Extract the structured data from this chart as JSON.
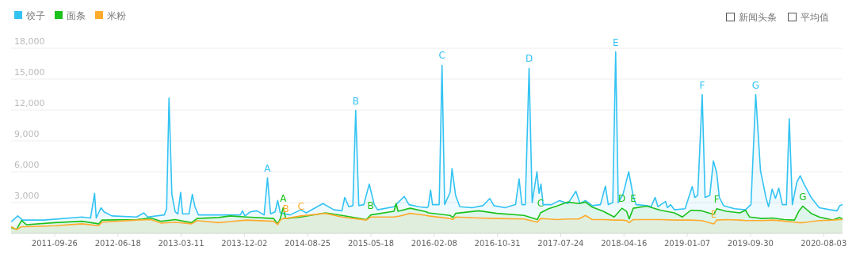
{
  "chart_data": {
    "type": "area",
    "legend": "top left",
    "grid": "y",
    "xlim": [
      "2011-03-27",
      "2020-10-21"
    ],
    "ylim": [
      0,
      18000
    ],
    "xticks": [
      {
        "value": "2011-09-26",
        "label": "2011-09-26"
      },
      {
        "value": "2012-06-18",
        "label": "2012-06-18"
      },
      {
        "value": "2013-03-11",
        "label": "2013-03-11"
      },
      {
        "value": "2013-12-02",
        "label": "2013-12-02"
      },
      {
        "value": "2014-08-25",
        "label": "2014-08-25"
      },
      {
        "value": "2015-05-18",
        "label": "2015-05-18"
      },
      {
        "value": "2016-02-08",
        "label": "2016-02-08"
      },
      {
        "value": "2016-10-31",
        "label": "2016-10-31"
      },
      {
        "value": "2017-07-24",
        "label": "2017-07-24"
      },
      {
        "value": "2018-04-16",
        "label": "2018-04-16"
      },
      {
        "value": "2019-01-07",
        "label": "2019-01-07"
      },
      {
        "value": "2019-09-30",
        "label": "2019-09-30"
      },
      {
        "value": "2020-08-03",
        "label": "2020-08-03"
      }
    ],
    "yticks": [
      {
        "value": 3000,
        "label": "3,000"
      },
      {
        "value": 6000,
        "label": "6,000"
      },
      {
        "value": 9000,
        "label": "9,000"
      },
      {
        "value": 12000,
        "label": "12,000"
      },
      {
        "value": 15000,
        "label": "15,000"
      },
      {
        "value": 18000,
        "label": "18,000"
      }
    ],
    "series": [
      {
        "name": "饺子",
        "color": "#33c3f3",
        "x": [
          "2011-03-28",
          "2011-04-24",
          "2011-05-14",
          "2011-08-12",
          "2012-01-19",
          "2012-02-24",
          "2012-03-12",
          "2012-03-19",
          "2012-04-08",
          "2012-04-21",
          "2012-05-24",
          "2012-09-05",
          "2012-10-05",
          "2012-10-21",
          "2012-12-30",
          "2013-01-09",
          "2013-01-19",
          "2013-01-31",
          "2013-02-14",
          "2013-02-25",
          "2013-03-09",
          "2013-03-17",
          "2013-04-13",
          "2013-04-27",
          "2013-05-08",
          "2013-05-23",
          "2013-11-15",
          "2013-11-24",
          "2013-12-04",
          "2013-12-27",
          "2014-01-24",
          "2014-02-23",
          "2014-03-09",
          "2014-03-22",
          "2014-04-10",
          "2014-04-21",
          "2014-05-02",
          "2014-06-12",
          "2014-07-27",
          "2014-08-19",
          "2014-10-28",
          "2014-12-13",
          "2015-01-16",
          "2015-01-28",
          "2015-02-14",
          "2015-03-03",
          "2015-03-15",
          "2015-03-28",
          "2015-04-18",
          "2015-05-11",
          "2015-06-01",
          "2015-06-15",
          "2015-08-23",
          "2015-10-05",
          "2015-10-25",
          "2015-12-04",
          "2016-01-08",
          "2016-01-14",
          "2016-01-24",
          "2016-02-01",
          "2016-02-29",
          "2016-03-12",
          "2016-03-23",
          "2016-04-15",
          "2016-04-23",
          "2016-05-08",
          "2016-05-26",
          "2016-07-16",
          "2016-08-31",
          "2016-09-29",
          "2016-10-16",
          "2016-12-01",
          "2017-01-15",
          "2017-01-30",
          "2017-02-11",
          "2017-02-25",
          "2017-03-13",
          "2017-03-26",
          "2017-04-15",
          "2017-04-24",
          "2017-05-02",
          "2017-05-11",
          "2017-06-15",
          "2017-07-19",
          "2017-08-23",
          "2017-09-26",
          "2017-10-13",
          "2017-11-05",
          "2017-12-04",
          "2018-01-07",
          "2018-01-28",
          "2018-02-09",
          "2018-02-28",
          "2018-03-12",
          "2018-03-23",
          "2018-04-12",
          "2018-05-06",
          "2018-05-25",
          "2018-06-06",
          "2018-07-22",
          "2018-08-08",
          "2018-08-25",
          "2018-09-06",
          "2018-10-08",
          "2018-10-16",
          "2018-10-29",
          "2018-11-14",
          "2018-12-29",
          "2019-01-28",
          "2019-02-08",
          "2019-02-20",
          "2019-03-11",
          "2019-03-23",
          "2019-04-12",
          "2019-04-27",
          "2019-05-11",
          "2019-05-22",
          "2019-06-09",
          "2019-07-25",
          "2019-09-09",
          "2019-10-02",
          "2019-10-22",
          "2019-11-11",
          "2019-12-04",
          "2019-12-15",
          "2019-12-30",
          "2020-01-13",
          "2020-01-27",
          "2020-02-11",
          "2020-02-28",
          "2020-03-11",
          "2020-03-24",
          "2020-04-12",
          "2020-04-26",
          "2020-05-12",
          "2020-06-11",
          "2020-07-15",
          "2020-08-30",
          "2020-09-28",
          "2020-10-09",
          "2020-10-21"
        ],
        "values": [
          1150,
          1700,
          1300,
          1300,
          1600,
          1500,
          3900,
          1500,
          2500,
          2100,
          1700,
          1600,
          2000,
          1600,
          1800,
          2400,
          13150,
          3800,
          2100,
          1900,
          4000,
          1900,
          1900,
          3800,
          2600,
          1800,
          1800,
          2200,
          1700,
          2100,
          2200,
          1800,
          5400,
          1900,
          2100,
          3200,
          2000,
          1800,
          2300,
          2000,
          2900,
          2300,
          2200,
          3500,
          2600,
          2700,
          11950,
          2700,
          2800,
          4800,
          2800,
          2300,
          2600,
          3600,
          2800,
          2600,
          2500,
          2600,
          4200,
          2800,
          2800,
          16350,
          2800,
          4000,
          6300,
          3700,
          2600,
          2500,
          2700,
          3400,
          2700,
          2500,
          2800,
          5300,
          2800,
          2800,
          16050,
          3000,
          6000,
          3900,
          4800,
          2800,
          2800,
          3200,
          2900,
          4100,
          2900,
          3200,
          2700,
          2800,
          4600,
          2800,
          3000,
          17650,
          3000,
          3800,
          6000,
          3600,
          2800,
          2700,
          2600,
          3500,
          2600,
          3100,
          2500,
          2800,
          2300,
          2400,
          4550,
          3500,
          3700,
          13500,
          3500,
          3700,
          7050,
          5900,
          3500,
          2700,
          2400,
          2300,
          2800,
          13500,
          6100,
          3500,
          2600,
          4300,
          3400,
          4400,
          2800,
          2800,
          11150,
          2800,
          5000,
          5600,
          4800,
          3500,
          2500,
          2300,
          2200,
          2700,
          2800
        ]
      },
      {
        "name": "面条",
        "color": "#1cc21c",
        "x": [
          "2011-03-27",
          "2011-04-19",
          "2011-05-10",
          "2011-05-30",
          "2011-09-27",
          "2012-01-20",
          "2012-03-29",
          "2012-04-12",
          "2012-09-06",
          "2012-11-03",
          "2012-12-18",
          "2013-02-14",
          "2013-04-24",
          "2013-05-17",
          "2013-08-17",
          "2013-10-02",
          "2013-12-10",
          "2014-04-04",
          "2014-04-21",
          "2014-05-02",
          "2014-05-14",
          "2014-05-25",
          "2014-07-28",
          "2014-11-08",
          "2015-01-16",
          "2015-04-29",
          "2015-05-17",
          "2015-08-23",
          "2015-09-01",
          "2015-09-09",
          "2015-10-30",
          "2016-01-07",
          "2016-01-14",
          "2016-04-15",
          "2016-04-27",
          "2016-05-08",
          "2016-08-14",
          "2016-10-28",
          "2017-02-20",
          "2017-04-17",
          "2017-04-30",
          "2017-06-03",
          "2017-07-07",
          "2017-08-23",
          "2017-10-08",
          "2017-11-05",
          "2017-12-04",
          "2018-01-19",
          "2018-03-06",
          "2018-04-07",
          "2018-04-27",
          "2018-05-08",
          "2018-05-25",
          "2018-07-22",
          "2018-09-17",
          "2018-11-14",
          "2018-12-18",
          "2019-01-22",
          "2019-03-09",
          "2019-04-29",
          "2019-05-11",
          "2019-06-20",
          "2019-08-17",
          "2019-09-09",
          "2019-09-26",
          "2019-11-17",
          "2020-01-02",
          "2020-02-17",
          "2020-04-02",
          "2020-04-20",
          "2020-05-07",
          "2020-06-11",
          "2020-07-15",
          "2020-09-10",
          "2020-10-09",
          "2020-10-21"
        ],
        "values": [
          570,
          390,
          1260,
          850,
          1050,
          1180,
          930,
          1300,
          1350,
          1500,
          1180,
          1350,
          1050,
          1450,
          1550,
          1700,
          1600,
          1450,
          930,
          1450,
          2500,
          1450,
          1600,
          2000,
          1750,
          1350,
          1800,
          2150,
          2900,
          2150,
          2450,
          2100,
          2000,
          1750,
          1550,
          1950,
          2200,
          1950,
          1750,
          1350,
          2000,
          2400,
          2650,
          3050,
          2900,
          3050,
          2550,
          2150,
          1600,
          2450,
          2150,
          1400,
          2450,
          2650,
          2250,
          2000,
          1600,
          2250,
          2200,
          1850,
          2400,
          2150,
          2000,
          2250,
          1600,
          1450,
          1500,
          1350,
          1300,
          2150,
          2650,
          1950,
          1600,
          1300,
          1550,
          1400
        ]
      },
      {
        "name": "米粉",
        "color": "#ffab2e",
        "x": [
          "2011-03-27",
          "2011-04-19",
          "2011-05-10",
          "2011-05-30",
          "2011-09-27",
          "2012-01-20",
          "2012-03-29",
          "2012-04-12",
          "2012-09-06",
          "2012-11-03",
          "2012-12-18",
          "2013-02-14",
          "2013-04-24",
          "2013-05-17",
          "2013-08-17",
          "2013-10-02",
          "2013-12-10",
          "2014-04-04",
          "2014-04-21",
          "2014-05-02",
          "2014-05-14",
          "2014-05-25",
          "2014-07-28",
          "2014-11-08",
          "2015-01-16",
          "2015-04-29",
          "2015-05-17",
          "2015-08-23",
          "2015-09-01",
          "2015-09-09",
          "2015-10-30",
          "2016-01-07",
          "2016-01-14",
          "2016-04-15",
          "2016-04-27",
          "2016-05-08",
          "2016-08-14",
          "2016-10-28",
          "2017-02-20",
          "2017-04-17",
          "2017-04-30",
          "2017-06-03",
          "2017-07-07",
          "2017-08-23",
          "2017-10-08",
          "2017-11-05",
          "2017-12-04",
          "2018-01-19",
          "2018-03-06",
          "2018-04-07",
          "2018-04-27",
          "2018-05-08",
          "2018-05-25",
          "2018-07-22",
          "2018-09-17",
          "2018-11-14",
          "2018-12-18",
          "2019-01-22",
          "2019-03-09",
          "2019-04-29",
          "2019-05-11",
          "2019-06-20",
          "2019-08-17",
          "2019-09-09",
          "2019-09-26",
          "2019-11-17",
          "2020-01-02",
          "2020-02-17",
          "2020-04-02",
          "2020-04-20",
          "2020-05-07",
          "2020-06-11",
          "2020-07-15",
          "2020-09-10",
          "2020-10-09",
          "2020-10-21"
        ],
        "values": [
          650,
          380,
          650,
          650,
          750,
          930,
          750,
          1100,
          1300,
          1350,
          1000,
          1100,
          930,
          1250,
          1050,
          1150,
          1300,
          1180,
          850,
          1300,
          1450,
          1450,
          1700,
          1950,
          1600,
          1300,
          1600,
          1600,
          1650,
          1650,
          1950,
          1750,
          1700,
          1450,
          1350,
          1600,
          1500,
          1450,
          1400,
          1100,
          1450,
          1400,
          1350,
          1400,
          1400,
          1750,
          1350,
          1350,
          1300,
          1300,
          1250,
          1050,
          1350,
          1350,
          1350,
          1300,
          1300,
          1300,
          1250,
          930,
          1300,
          1350,
          1300,
          1250,
          1250,
          1250,
          1300,
          1200,
          1100,
          1050,
          1050,
          1150,
          1250,
          1300,
          1350,
          1350
        ]
      }
    ],
    "annotations": [
      "新闻头条",
      "平均值",
      {
        "text": "A",
        "x": "2014-03-09",
        "y": 5400
      },
      {
        "text": "B",
        "x": "2015-03-15",
        "y": 11950
      },
      {
        "text": "C",
        "x": "2016-03-12",
        "y": 16350
      },
      {
        "text": "D",
        "x": "2017-03-13",
        "y": 16050
      },
      {
        "text": "E",
        "x": "2018-03-12",
        "y": 17650
      },
      {
        "text": "F",
        "x": "2019-03-11",
        "y": 13500
      },
      {
        "text": "G",
        "x": "2019-10-22",
        "y": 13500
      },
      {
        "text": "A",
        "x": "2014-05-14",
        "y": 2500
      },
      {
        "text": "B",
        "x": "2014-05-25",
        "y": 1450
      },
      {
        "text": "C",
        "x": "2014-07-28",
        "y": 1700
      },
      {
        "text": "B",
        "x": "2015-05-17",
        "y": 1800
      },
      {
        "text": "C",
        "x": "2017-04-30",
        "y": 2000
      },
      {
        "text": "D",
        "x": "2018-04-07",
        "y": 2450
      },
      {
        "text": "E",
        "x": "2018-05-25",
        "y": 2450
      },
      {
        "text": "F",
        "x": "2019-05-11",
        "y": 2400
      },
      {
        "text": "E",
        "x": "2019-04-29",
        "y": 930
      },
      {
        "text": "G",
        "x": "2020-05-07",
        "y": 2650
      }
    ]
  }
}
